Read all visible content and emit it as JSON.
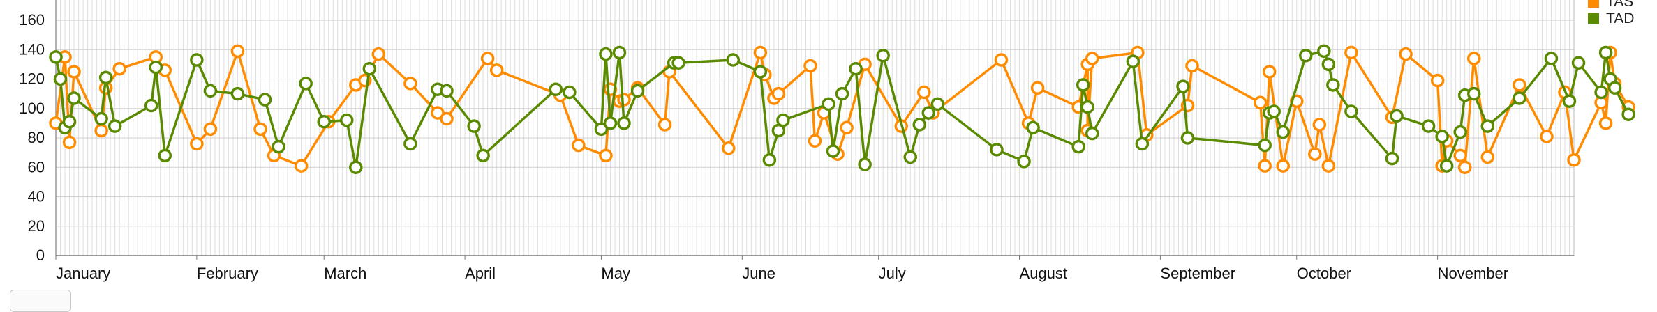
{
  "chart_data": {
    "type": "line",
    "xlabel": "",
    "ylabel": "",
    "ylim": [
      0,
      160
    ],
    "yticks": [
      "0",
      "20",
      "40",
      "60",
      "80",
      "100",
      "120",
      "140",
      "160"
    ],
    "x_domain": [
      "2018-01-01",
      "2018-12-01"
    ],
    "month_ticks": [
      {
        "label": "January",
        "date": "2018-01-01"
      },
      {
        "label": "February",
        "date": "2018-02-01"
      },
      {
        "label": "March",
        "date": "2018-03-01"
      },
      {
        "label": "April",
        "date": "2018-04-01"
      },
      {
        "label": "May",
        "date": "2018-05-01"
      },
      {
        "label": "June",
        "date": "2018-06-01"
      },
      {
        "label": "July",
        "date": "2018-07-01"
      },
      {
        "label": "August",
        "date": "2018-08-01"
      },
      {
        "label": "September",
        "date": "2018-09-01"
      },
      {
        "label": "October",
        "date": "2018-10-01"
      },
      {
        "label": "November",
        "date": "2018-11-01"
      }
    ],
    "grid": true,
    "legend_position": "top-right",
    "series": [
      {
        "name": "TAS",
        "color": "#ff8c00",
        "points": [
          [
            "2018-01-01",
            90
          ],
          [
            "2018-01-03",
            135
          ],
          [
            "2018-01-04",
            77
          ],
          [
            "2018-01-05",
            125
          ],
          [
            "2018-01-11",
            85
          ],
          [
            "2018-01-12",
            114
          ],
          [
            "2018-01-15",
            127
          ],
          [
            "2018-01-23",
            135
          ],
          [
            "2018-01-25",
            126
          ],
          [
            "2018-02-01",
            76
          ],
          [
            "2018-02-04",
            86
          ],
          [
            "2018-02-10",
            139
          ],
          [
            "2018-02-15",
            86
          ],
          [
            "2018-02-18",
            68
          ],
          [
            "2018-02-24",
            61
          ],
          [
            "2018-03-02",
            91
          ],
          [
            "2018-03-08",
            116
          ],
          [
            "2018-03-10",
            119
          ],
          [
            "2018-03-13",
            137
          ],
          [
            "2018-03-20",
            117
          ],
          [
            "2018-03-26",
            97
          ],
          [
            "2018-03-28",
            93
          ],
          [
            "2018-04-06",
            134
          ],
          [
            "2018-04-08",
            126
          ],
          [
            "2018-04-22",
            109
          ],
          [
            "2018-04-26",
            75
          ],
          [
            "2018-05-02",
            68
          ],
          [
            "2018-05-03",
            113
          ],
          [
            "2018-05-05",
            105
          ],
          [
            "2018-05-06",
            106
          ],
          [
            "2018-05-09",
            114
          ],
          [
            "2018-05-15",
            89
          ],
          [
            "2018-05-16",
            125
          ],
          [
            "2018-05-29",
            73
          ],
          [
            "2018-06-05",
            138
          ],
          [
            "2018-06-06",
            123
          ],
          [
            "2018-06-08",
            107
          ],
          [
            "2018-06-09",
            110
          ],
          [
            "2018-06-16",
            129
          ],
          [
            "2018-06-17",
            78
          ],
          [
            "2018-06-19",
            97
          ],
          [
            "2018-06-22",
            69
          ],
          [
            "2018-06-24",
            87
          ],
          [
            "2018-06-28",
            130
          ],
          [
            "2018-07-06",
            88
          ],
          [
            "2018-07-11",
            111
          ],
          [
            "2018-07-13",
            97
          ],
          [
            "2018-07-28",
            133
          ],
          [
            "2018-08-03",
            90
          ],
          [
            "2018-08-05",
            114
          ],
          [
            "2018-08-14",
            101
          ],
          [
            "2018-08-16",
            130
          ],
          [
            "2018-08-16",
            85
          ],
          [
            "2018-08-17",
            134
          ],
          [
            "2018-08-27",
            138
          ],
          [
            "2018-08-29",
            82
          ],
          [
            "2018-09-07",
            102
          ],
          [
            "2018-09-08",
            129
          ],
          [
            "2018-09-23",
            104
          ],
          [
            "2018-09-24",
            61
          ],
          [
            "2018-09-25",
            125
          ],
          [
            "2018-09-28",
            61
          ],
          [
            "2018-10-01",
            105
          ],
          [
            "2018-10-05",
            69
          ],
          [
            "2018-10-06",
            89
          ],
          [
            "2018-10-08",
            61
          ],
          [
            "2018-10-13",
            138
          ],
          [
            "2018-10-22",
            94
          ],
          [
            "2018-10-25",
            137
          ],
          [
            "2018-11-01",
            119
          ],
          [
            "2018-11-02",
            61
          ],
          [
            "2018-11-03",
            78
          ],
          [
            "2018-11-06",
            68
          ],
          [
            "2018-11-07",
            60
          ],
          [
            "2018-11-09",
            134
          ],
          [
            "2018-11-12",
            67
          ],
          [
            "2018-11-19",
            116
          ],
          [
            "2018-11-25",
            81
          ],
          [
            "2018-11-29",
            111
          ],
          [
            "2018-12-01",
            65
          ],
          [
            "2018-12-07",
            104
          ],
          [
            "2018-12-08",
            90
          ],
          [
            "2018-12-09",
            138
          ],
          [
            "2018-12-10",
            117
          ],
          [
            "2018-12-13",
            101
          ]
        ]
      },
      {
        "name": "TAD",
        "color": "#5a8a00",
        "points": [
          [
            "2018-01-01",
            135
          ],
          [
            "2018-01-02",
            120
          ],
          [
            "2018-01-03",
            87
          ],
          [
            "2018-01-04",
            91
          ],
          [
            "2018-01-05",
            107
          ],
          [
            "2018-01-11",
            93
          ],
          [
            "2018-01-12",
            121
          ],
          [
            "2018-01-14",
            88
          ],
          [
            "2018-01-22",
            102
          ],
          [
            "2018-01-23",
            128
          ],
          [
            "2018-01-25",
            68
          ],
          [
            "2018-02-01",
            133
          ],
          [
            "2018-02-04",
            112
          ],
          [
            "2018-02-10",
            110
          ],
          [
            "2018-02-16",
            106
          ],
          [
            "2018-02-19",
            74
          ],
          [
            "2018-02-25",
            117
          ],
          [
            "2018-03-01",
            91
          ],
          [
            "2018-03-06",
            92
          ],
          [
            "2018-03-08",
            60
          ],
          [
            "2018-03-11",
            127
          ],
          [
            "2018-03-20",
            76
          ],
          [
            "2018-03-26",
            113
          ],
          [
            "2018-03-28",
            112
          ],
          [
            "2018-04-03",
            88
          ],
          [
            "2018-04-05",
            68
          ],
          [
            "2018-04-21",
            113
          ],
          [
            "2018-04-24",
            111
          ],
          [
            "2018-05-01",
            86
          ],
          [
            "2018-05-02",
            137
          ],
          [
            "2018-05-03",
            90
          ],
          [
            "2018-05-05",
            138
          ],
          [
            "2018-05-06",
            90
          ],
          [
            "2018-05-09",
            112
          ],
          [
            "2018-05-17",
            131
          ],
          [
            "2018-05-18",
            131
          ],
          [
            "2018-05-30",
            133
          ],
          [
            "2018-06-05",
            125
          ],
          [
            "2018-06-07",
            65
          ],
          [
            "2018-06-09",
            85
          ],
          [
            "2018-06-10",
            92
          ],
          [
            "2018-06-20",
            103
          ],
          [
            "2018-06-21",
            71
          ],
          [
            "2018-06-23",
            110
          ],
          [
            "2018-06-26",
            127
          ],
          [
            "2018-06-28",
            62
          ],
          [
            "2018-07-02",
            136
          ],
          [
            "2018-07-08",
            67
          ],
          [
            "2018-07-10",
            89
          ],
          [
            "2018-07-12",
            97
          ],
          [
            "2018-07-14",
            103
          ],
          [
            "2018-07-27",
            72
          ],
          [
            "2018-08-02",
            64
          ],
          [
            "2018-08-04",
            87
          ],
          [
            "2018-08-14",
            74
          ],
          [
            "2018-08-15",
            116
          ],
          [
            "2018-08-16",
            101
          ],
          [
            "2018-08-17",
            83
          ],
          [
            "2018-08-26",
            132
          ],
          [
            "2018-08-28",
            76
          ],
          [
            "2018-09-06",
            115
          ],
          [
            "2018-09-07",
            80
          ],
          [
            "2018-09-24",
            75
          ],
          [
            "2018-09-25",
            97
          ],
          [
            "2018-09-26",
            98
          ],
          [
            "2018-09-28",
            84
          ],
          [
            "2018-10-03",
            136
          ],
          [
            "2018-10-07",
            139
          ],
          [
            "2018-10-08",
            130
          ],
          [
            "2018-10-09",
            116
          ],
          [
            "2018-10-13",
            98
          ],
          [
            "2018-10-22",
            66
          ],
          [
            "2018-10-23",
            95
          ],
          [
            "2018-10-30",
            88
          ],
          [
            "2018-11-02",
            81
          ],
          [
            "2018-11-03",
            61
          ],
          [
            "2018-11-06",
            84
          ],
          [
            "2018-11-07",
            109
          ],
          [
            "2018-11-09",
            110
          ],
          [
            "2018-11-12",
            88
          ],
          [
            "2018-11-19",
            107
          ],
          [
            "2018-11-26",
            134
          ],
          [
            "2018-11-30",
            105
          ],
          [
            "2018-12-02",
            131
          ],
          [
            "2018-12-07",
            111
          ],
          [
            "2018-12-08",
            138
          ],
          [
            "2018-12-09",
            120
          ],
          [
            "2018-12-10",
            114
          ],
          [
            "2018-12-13",
            96
          ]
        ]
      }
    ]
  }
}
